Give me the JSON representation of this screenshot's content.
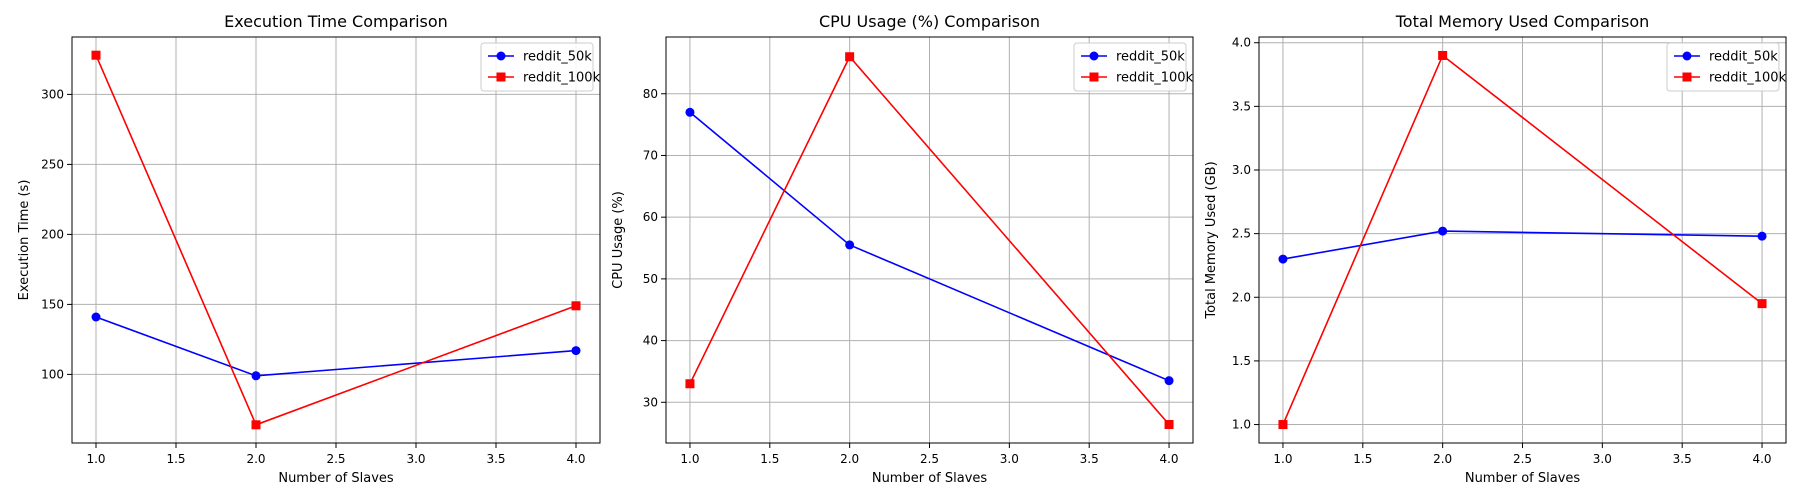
{
  "figure": {
    "colors": {
      "reddit_50k": "#0000ff",
      "reddit_100k": "#ff0000",
      "grid": "#b0b0b0"
    }
  },
  "chart_data": [
    {
      "type": "line",
      "title": "Execution Time Comparison",
      "xlabel": "Number of Slaves",
      "ylabel": "Execution Time (s)",
      "x": [
        1,
        2,
        4
      ],
      "xlim": [
        0.85,
        4.15
      ],
      "ylim": [
        51,
        341
      ],
      "xticks": [
        1.0,
        1.5,
        2.0,
        2.5,
        3.0,
        3.5,
        4.0
      ],
      "xtick_labels": [
        "1.0",
        "1.5",
        "2.0",
        "2.5",
        "3.0",
        "3.5",
        "4.0"
      ],
      "yticks": [
        100,
        150,
        200,
        250,
        300
      ],
      "ytick_labels": [
        "100",
        "150",
        "200",
        "250",
        "300"
      ],
      "grid": true,
      "legend_position": "top-right",
      "series": [
        {
          "name": "reddit_50k",
          "color": "#0000ff",
          "marker": "circle",
          "values": [
            141,
            99,
            117
          ]
        },
        {
          "name": "reddit_100k",
          "color": "#ff0000",
          "marker": "square",
          "values": [
            328,
            64,
            149
          ]
        }
      ]
    },
    {
      "type": "line",
      "title": "CPU Usage (%) Comparison",
      "xlabel": "Number of Slaves",
      "ylabel": "CPU Usage (%)",
      "x": [
        1,
        2,
        4
      ],
      "xlim": [
        0.85,
        4.15
      ],
      "ylim": [
        23.4,
        89.2
      ],
      "xticks": [
        1.0,
        1.5,
        2.0,
        2.5,
        3.0,
        3.5,
        4.0
      ],
      "xtick_labels": [
        "1.0",
        "1.5",
        "2.0",
        "2.5",
        "3.0",
        "3.5",
        "4.0"
      ],
      "yticks": [
        30,
        40,
        50,
        60,
        70,
        80
      ],
      "ytick_labels": [
        "30",
        "40",
        "50",
        "60",
        "70",
        "80"
      ],
      "grid": true,
      "legend_position": "top-right",
      "series": [
        {
          "name": "reddit_50k",
          "color": "#0000ff",
          "marker": "circle",
          "values": [
            77,
            55.5,
            33.5
          ]
        },
        {
          "name": "reddit_100k",
          "color": "#ff0000",
          "marker": "square",
          "values": [
            33,
            86,
            26.4
          ]
        }
      ]
    },
    {
      "type": "line",
      "title": "Total Memory Used Comparison",
      "xlabel": "Number of Slaves",
      "ylabel": "Total Memory Used (GB)",
      "x": [
        1,
        2,
        4
      ],
      "xlim": [
        0.85,
        4.15
      ],
      "ylim": [
        0.855,
        4.045
      ],
      "xticks": [
        1.0,
        1.5,
        2.0,
        2.5,
        3.0,
        3.5,
        4.0
      ],
      "xtick_labels": [
        "1.0",
        "1.5",
        "2.0",
        "2.5",
        "3.0",
        "3.5",
        "4.0"
      ],
      "yticks": [
        1.0,
        1.5,
        2.0,
        2.5,
        3.0,
        3.5,
        4.0
      ],
      "ytick_labels": [
        "1.0",
        "1.5",
        "2.0",
        "2.5",
        "3.0",
        "3.5",
        "4.0"
      ],
      "grid": true,
      "legend_position": "top-right",
      "series": [
        {
          "name": "reddit_50k",
          "color": "#0000ff",
          "marker": "circle",
          "values": [
            2.3,
            2.52,
            2.48
          ]
        },
        {
          "name": "reddit_100k",
          "color": "#ff0000",
          "marker": "square",
          "values": [
            1.0,
            3.9,
            1.95
          ]
        }
      ]
    }
  ]
}
